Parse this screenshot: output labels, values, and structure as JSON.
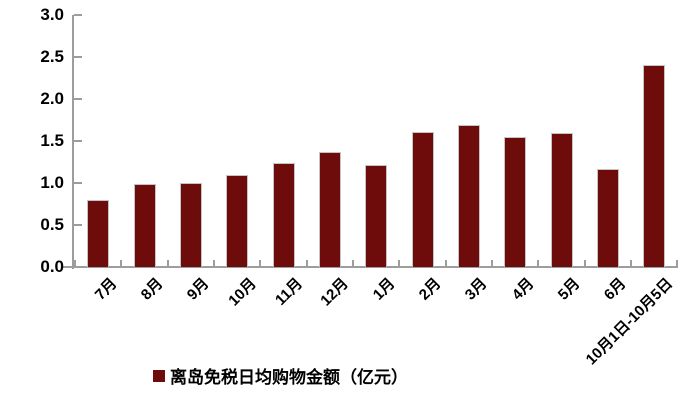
{
  "chart_data": {
    "type": "bar",
    "title": "",
    "categories": [
      "7月",
      "8月",
      "9月",
      "10月",
      "11月",
      "12月",
      "1月",
      "2月",
      "3月",
      "4月",
      "5月",
      "6月",
      "10月1日-10月5日"
    ],
    "values": [
      0.8,
      0.99,
      1.0,
      1.09,
      1.24,
      1.37,
      1.21,
      1.61,
      1.69,
      1.55,
      1.6,
      1.17,
      2.4
    ],
    "series_name": "离岛免税日均购物金额（亿元）",
    "xlabel": "",
    "ylabel": "",
    "ylim": [
      0,
      3.0
    ],
    "ytick_step": 0.5,
    "ytick_labels": [
      "0.0",
      "0.5",
      "1.0",
      "1.5",
      "2.0",
      "2.5",
      "3.0"
    ],
    "grid": false,
    "legend_position": "bottom",
    "legend_marker": "square",
    "colors": {
      "bar": "#6E0B0B",
      "bar_edge": "#C4C4C4",
      "axis": "#9D9D9D",
      "text": "#000000",
      "background": "#FFFFFF"
    }
  },
  "legend": {
    "label": "离岛免税日均购物金额（亿元）"
  }
}
